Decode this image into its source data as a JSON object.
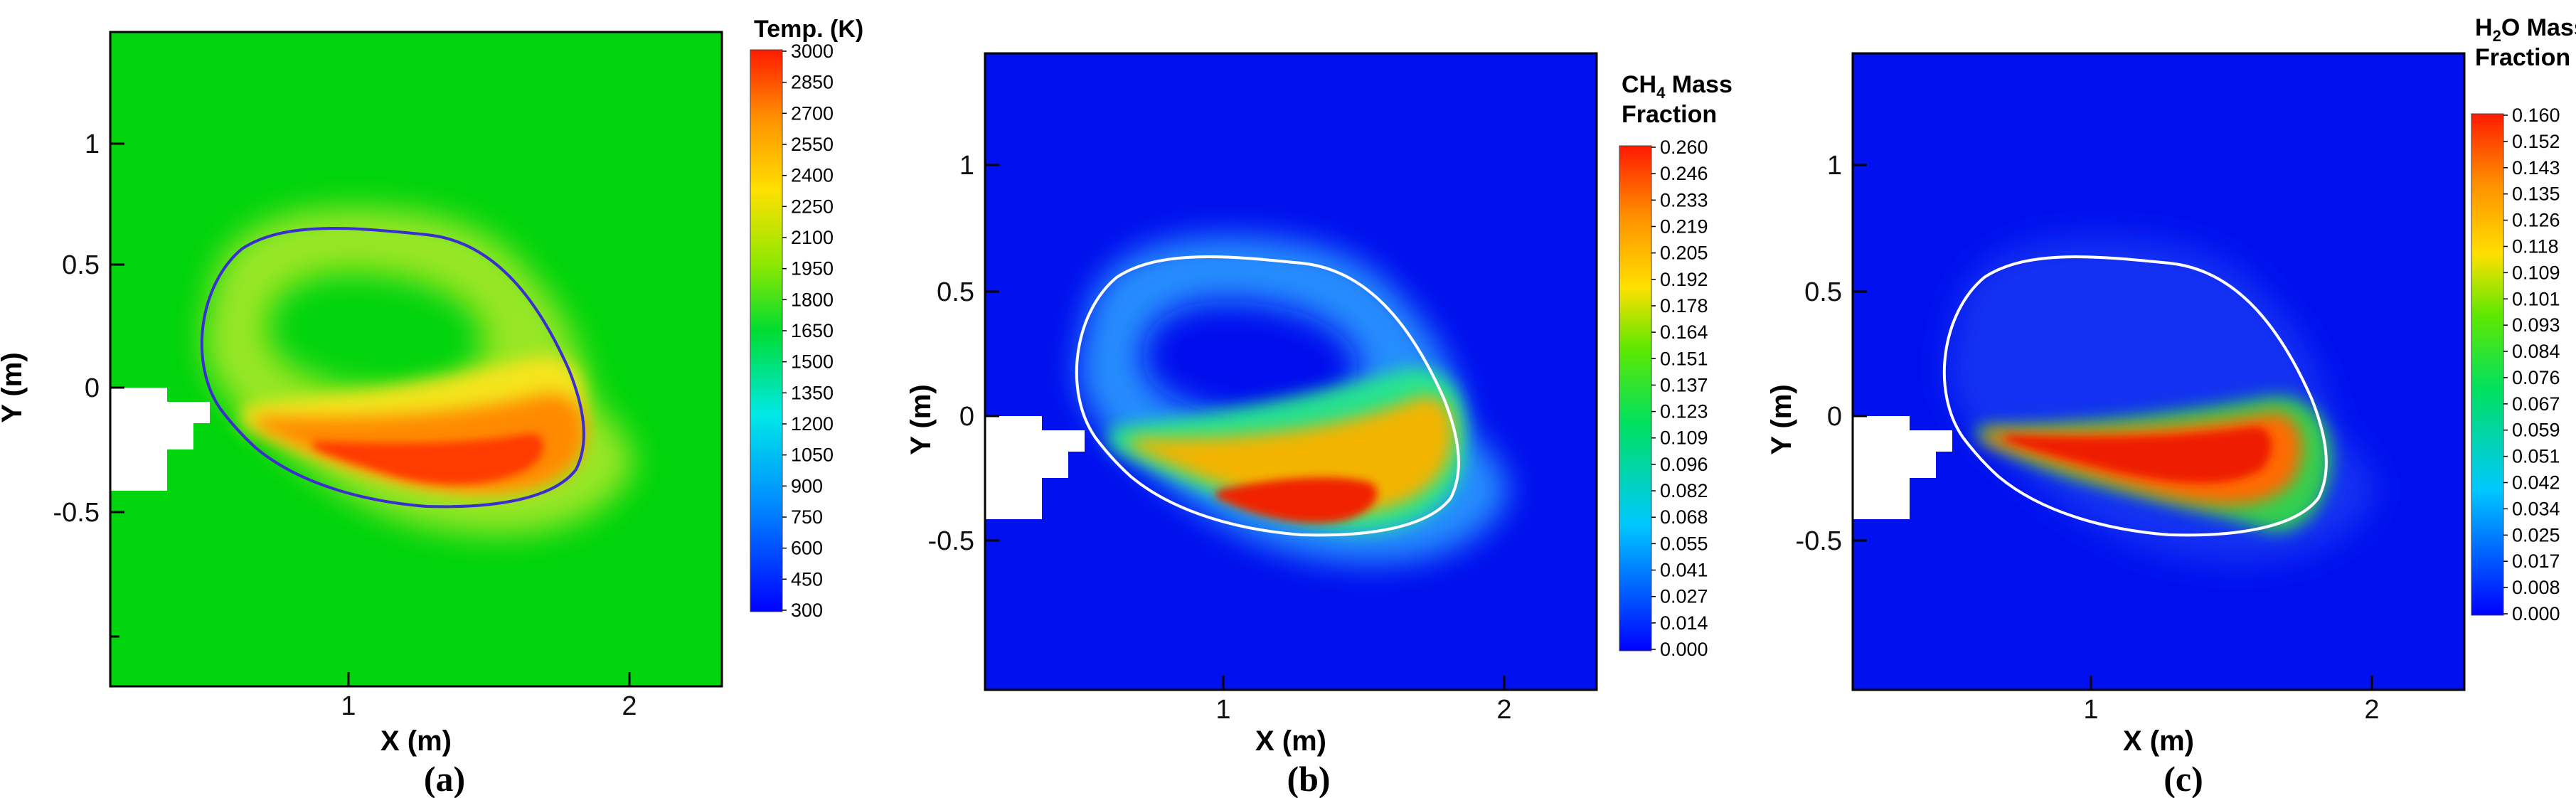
{
  "panels": [
    {
      "id": "a",
      "caption": "(a)",
      "colors": {
        "bg": "#00d40d",
        "iso": "#3a2ed0",
        "ring": "#b4ea2a",
        "mid": "#ffe41a",
        "hot": "#ff8a00",
        "core": "#ff3a00",
        "hole": "#ffffff"
      },
      "axes": {
        "xlabel": "X (m)",
        "ylabel": "Y (m)",
        "xticks": [
          "1",
          "2"
        ],
        "yticks": [
          "1",
          "0.5",
          "0",
          "-0.5"
        ]
      },
      "legend": {
        "title_main": "Temp. (K)",
        "title_sub": "",
        "title_line2": "",
        "ticks": [
          "3000",
          "2850",
          "2700",
          "2550",
          "2400",
          "2250",
          "2100",
          "1950",
          "1800",
          "1650",
          "1500",
          "1350",
          "1200",
          "1050",
          "900",
          "750",
          "600",
          "450",
          "300"
        ]
      }
    },
    {
      "id": "b",
      "caption": "(b)",
      "colors": {
        "bg": "#0010ee",
        "iso": "#ffffff",
        "ring": "#2a9cff",
        "mid": "#27e88a",
        "hot": "#f3b400",
        "core": "#f02000",
        "hole": "#ffffff"
      },
      "axes": {
        "xlabel": "X (m)",
        "ylabel": "Y (m)",
        "xticks": [
          "1",
          "2"
        ],
        "yticks": [
          "1",
          "0.5",
          "0",
          "-0.5"
        ]
      },
      "legend": {
        "title_main": "CH",
        "title_sub": "4",
        "title_tail": " Mass",
        "title_line2": "Fraction",
        "ticks": [
          "0.260",
          "0.246",
          "0.233",
          "0.219",
          "0.205",
          "0.192",
          "0.178",
          "0.164",
          "0.151",
          "0.137",
          "0.123",
          "0.109",
          "0.096",
          "0.082",
          "0.068",
          "0.055",
          "0.041",
          "0.027",
          "0.014",
          "0.000"
        ]
      }
    },
    {
      "id": "c",
      "caption": "(c)",
      "colors": {
        "bg": "#0010ee",
        "iso": "#ffffff",
        "ring": "#1a40f4",
        "mid": "#30d050",
        "hot": "#ff6a00",
        "core": "#ee1a00",
        "hole": "#ffffff"
      },
      "axes": {
        "xlabel": "X (m)",
        "ylabel": "Y (m)",
        "xticks": [
          "1",
          "2"
        ],
        "yticks": [
          "1",
          "0.5",
          "0",
          "-0.5"
        ]
      },
      "legend": {
        "title_main": "H",
        "title_sub": "2",
        "title_tail": "O Mass",
        "title_line2": "Fraction",
        "ticks": [
          "0.160",
          "0.152",
          "0.143",
          "0.135",
          "0.126",
          "0.118",
          "0.109",
          "0.101",
          "0.093",
          "0.084",
          "0.076",
          "0.067",
          "0.059",
          "0.051",
          "0.042",
          "0.034",
          "0.025",
          "0.017",
          "0.008",
          "0.000"
        ]
      }
    }
  ]
}
